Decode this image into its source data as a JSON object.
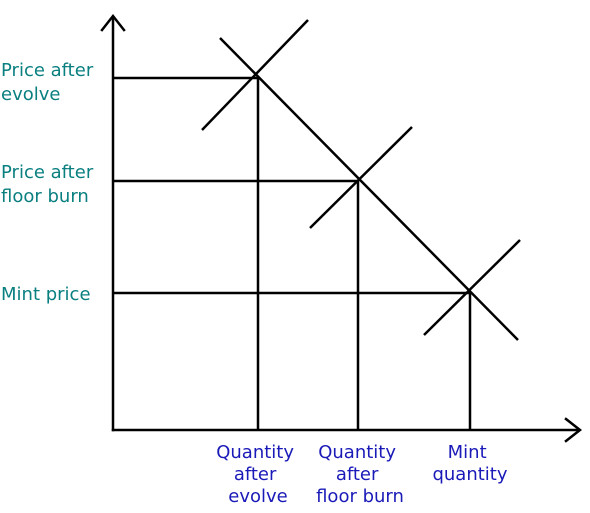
{
  "diagram": {
    "y_labels": [
      {
        "key": "evolve",
        "lines": [
          "Price after",
          "evolve"
        ]
      },
      {
        "key": "floor-burn",
        "lines": [
          "Price after",
          "floor burn"
        ]
      },
      {
        "key": "mint",
        "lines": [
          "Mint price"
        ]
      }
    ],
    "x_labels": [
      {
        "key": "evolve",
        "lines": [
          "Quantity",
          "after",
          "evolve"
        ]
      },
      {
        "key": "floor-burn",
        "lines": [
          "Quantity",
          "after",
          "floor burn"
        ]
      },
      {
        "key": "mint",
        "lines": [
          "Mint",
          "quantity"
        ]
      }
    ],
    "colors": {
      "line": "#000000",
      "price_label": "#0a7f80",
      "quantity_label": "#1a1ab8",
      "background": "#ffffff"
    }
  }
}
